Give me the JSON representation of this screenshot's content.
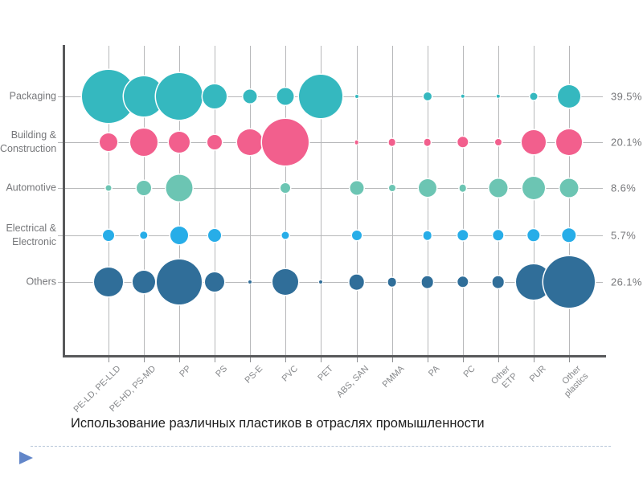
{
  "chart_data": {
    "type": "scatter",
    "variant": "bubble-matrix",
    "title": "Использование различных пластиков в отраслях промышленности",
    "x_categories": [
      "PE-LD, PE-LLD",
      "PE-HD, PS-MD",
      "PP",
      "PS",
      "PS-E",
      "PVC",
      "PET",
      "ABS, SAN",
      "PMMA",
      "PA",
      "PC",
      "Other\nETP",
      "PUR",
      "Other\nplastics"
    ],
    "y_categories": [
      "Packaging",
      "Building &\nConstruction",
      "Automotive",
      "Electrical &\nElectronic",
      "Others"
    ],
    "row_share_labels": [
      "39.5%",
      "20.1%",
      "8.6%",
      "5.7%",
      "26.1%"
    ],
    "grid": true,
    "legend": "none",
    "bubble_note": "radii are on-screen pixel radii; 0 = no bubble at that cell",
    "series": [
      {
        "name": "Packaging",
        "color": "#35b8bf",
        "radii": [
          33,
          25,
          29,
          15,
          8.5,
          10.5,
          27,
          2,
          0,
          5,
          2.2,
          2.2,
          4.5,
          14
        ]
      },
      {
        "name": "Building & Construction",
        "color": "#f25f8d",
        "radii": [
          11,
          17,
          13,
          9,
          16,
          29,
          0,
          2.3,
          4.3,
          4.3,
          6.7,
          4,
          15,
          16
        ]
      },
      {
        "name": "Automotive",
        "color": "#6cc5b3",
        "radii": [
          3.5,
          9,
          16.5,
          0,
          0,
          6,
          0,
          8.5,
          4,
          11,
          4.3,
          11.5,
          14,
          11.5
        ]
      },
      {
        "name": "Electrical & Electronic",
        "color": "#27ade8",
        "radii": [
          7,
          4.7,
          11,
          8,
          0,
          4.5,
          0,
          6,
          0,
          5.3,
          6.7,
          6.7,
          7.7,
          8.7
        ]
      },
      {
        "name": "Others",
        "color": "#306e99",
        "radii": [
          18,
          14,
          28,
          12,
          2,
          16,
          2,
          9.3,
          5.3,
          7.3,
          6.7,
          7.3,
          22,
          32
        ]
      }
    ],
    "colors": {
      "gridline": "#b7b8ba",
      "axis": "#58595b",
      "labels": "#76777a",
      "divider": "#b7c6d9",
      "bullet": "#6286c9"
    }
  }
}
